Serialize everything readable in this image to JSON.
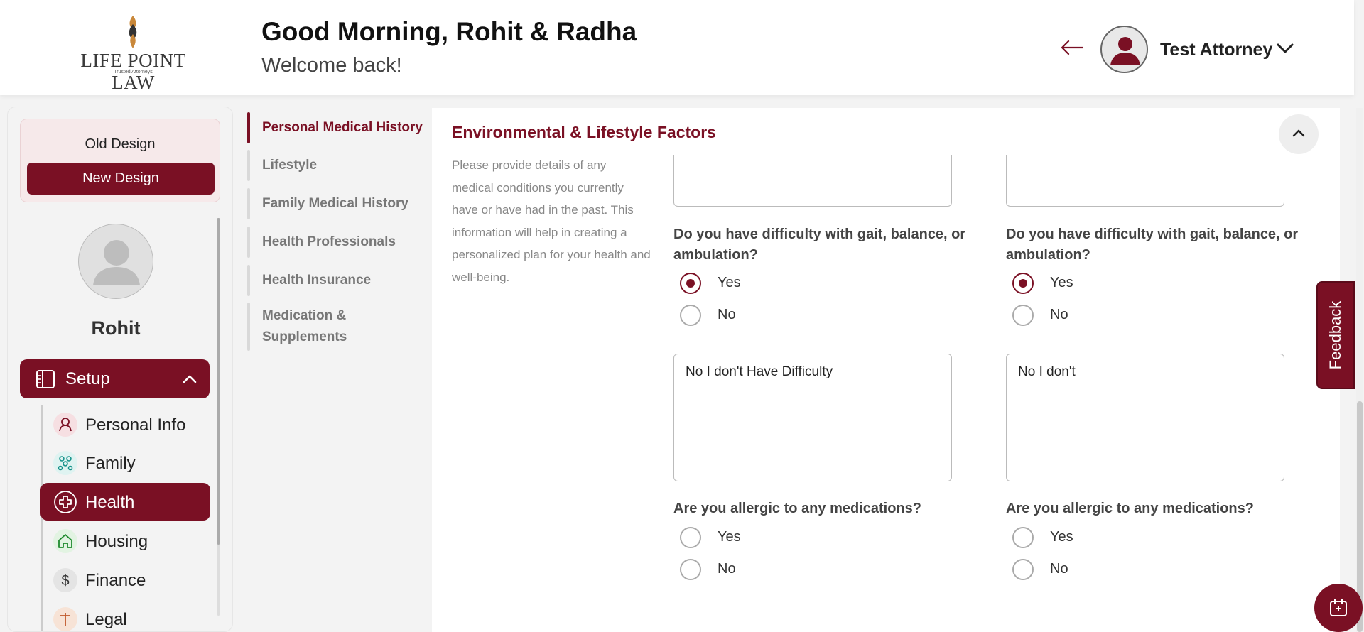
{
  "header": {
    "logo_text": "LIFE POINT LAW",
    "logo_sub": "Trusted Attorneys",
    "greeting": "Good Morning, Rohit & Radha",
    "welcome": "Welcome back!",
    "user_name": "Test Attorney"
  },
  "sidebar": {
    "old_design": "Old Design",
    "new_design": "New Design",
    "profile_name": "Rohit",
    "setup_label": "Setup",
    "items": [
      {
        "label": "Personal Info",
        "icon": "person-icon"
      },
      {
        "label": "Family",
        "icon": "family-icon"
      },
      {
        "label": "Health",
        "icon": "health-cross-icon",
        "active": true
      },
      {
        "label": "Housing",
        "icon": "home-icon"
      },
      {
        "label": "Finance",
        "icon": "dollar-icon"
      },
      {
        "label": "Legal",
        "icon": "legal-icon"
      }
    ]
  },
  "subnav": {
    "items": [
      {
        "label": "Personal Medical History",
        "active": true
      },
      {
        "label": "Lifestyle"
      },
      {
        "label": "Family Medical History"
      },
      {
        "label": "Health Professionals"
      },
      {
        "label": "Health Insurance"
      },
      {
        "label": "Medication & Supplements"
      }
    ]
  },
  "main": {
    "section_title": "Environmental & Lifestyle Factors",
    "section_desc": "Please provide details of any medical conditions you currently have or have had in the past. This information will help in creating a personalized plan for your health and well-being.",
    "columns": [
      {
        "q1": "Do you have difficulty with gait, balance, or ambulation?",
        "q1_yes": "Yes",
        "q1_no": "No",
        "q1_selected": "Yes",
        "q1_details": "No I don't Have Difficulty",
        "q2": "Are you allergic to any medications?",
        "q2_yes": "Yes",
        "q2_no": "No"
      },
      {
        "q1": "Do you have difficulty with gait, balance, or ambulation?",
        "q1_yes": "Yes",
        "q1_no": "No",
        "q1_selected": "Yes",
        "q1_details": "No I don't",
        "q2": "Are you allergic to any medications?",
        "q2_yes": "Yes",
        "q2_no": "No"
      }
    ]
  },
  "feedback_label": "Feedback",
  "colors": {
    "accent": "#7a1024"
  }
}
